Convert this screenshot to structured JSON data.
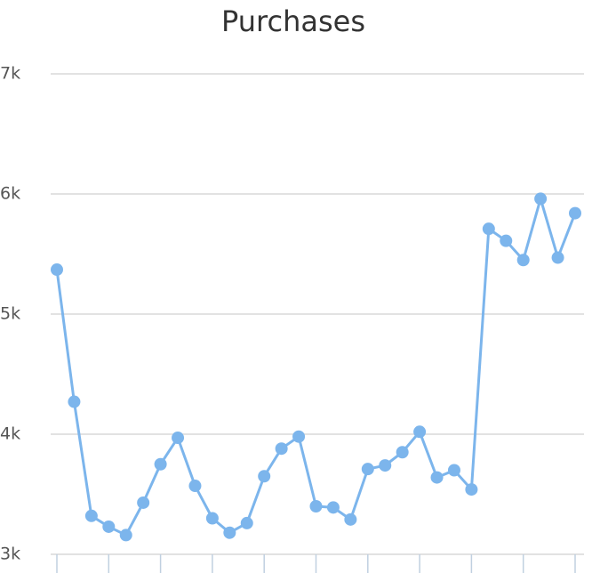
{
  "chart_data": {
    "type": "line",
    "title": "Purchases",
    "categories": [
      null,
      null,
      null,
      null,
      null,
      null,
      null,
      null,
      null,
      null,
      null,
      null,
      null,
      null,
      null,
      null,
      null,
      null,
      null,
      null,
      null,
      null,
      null,
      null,
      null,
      null,
      null,
      null,
      null,
      null,
      null
    ],
    "series": [
      {
        "name": "Purchases",
        "color": "#7cb5ec",
        "values": [
          5370,
          4270,
          3320,
          3230,
          3160,
          3430,
          3750,
          3970,
          3570,
          3300,
          3180,
          3260,
          3650,
          3880,
          3980,
          3400,
          3390,
          3290,
          3710,
          3740,
          3850,
          4020,
          3640,
          3700,
          3540,
          5710,
          5610,
          5450,
          5960,
          5470,
          5840
        ]
      }
    ],
    "ylim": [
      3000,
      7000
    ],
    "yticks": [
      {
        "value": 3000,
        "label": "3k"
      },
      {
        "value": 4000,
        "label": "4k"
      },
      {
        "value": 5000,
        "label": "5k"
      },
      {
        "value": 6000,
        "label": "6k"
      },
      {
        "value": 7000,
        "label": "7k"
      }
    ],
    "grid": true
  }
}
